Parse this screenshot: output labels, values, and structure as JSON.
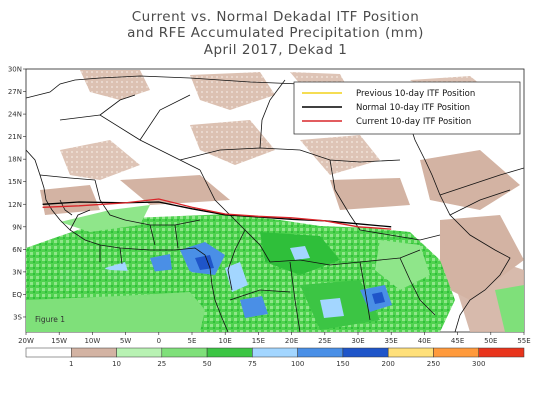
{
  "title": {
    "line1": "Current vs. Normal Dekadal ITF Position",
    "line2": "and RFE Accumulated Precipitation (mm)",
    "line3": "April 2017, Dekad 1"
  },
  "figure_label": "Figure 1",
  "axes": {
    "lat_ticks": [
      "30N",
      "27N",
      "24N",
      "21N",
      "18N",
      "15N",
      "12N",
      "9N",
      "6N",
      "3N",
      "EQ",
      "3S"
    ],
    "lon_ticks": [
      "20W",
      "15W",
      "10W",
      "5W",
      "0",
      "5E",
      "10E",
      "15E",
      "20E",
      "25E",
      "30E",
      "35E",
      "40E",
      "45E",
      "50E",
      "55E"
    ]
  },
  "legend": {
    "items": [
      {
        "label": "Previous 10-day ITF Position",
        "color": "#f2d21a"
      },
      {
        "label": "Normal 10-day ITF Position",
        "color": "#000000"
      },
      {
        "label": "Current 10-day ITF Position",
        "color": "#d9262a"
      }
    ]
  },
  "colorbar": {
    "ticks": [
      "1",
      "10",
      "25",
      "50",
      "75",
      "100",
      "150",
      "200",
      "250",
      "300"
    ],
    "colors": [
      "#ffffff",
      "#d3b3a3",
      "#b8f2b3",
      "#7fe07a",
      "#3cc544",
      "#a3d6ff",
      "#4a8fe6",
      "#1f55c9",
      "#ffe07a",
      "#ff9a3c",
      "#e8341c"
    ]
  },
  "itf_lines": {
    "normal": [
      [
        -17.5,
        12.0
      ],
      [
        -12,
        12.3
      ],
      [
        -5,
        12.2
      ],
      [
        0,
        12.3
      ],
      [
        5,
        11.4
      ],
      [
        10,
        10.6
      ],
      [
        15,
        10.3
      ],
      [
        20,
        10.0
      ],
      [
        25,
        9.8
      ],
      [
        30,
        9.4
      ],
      [
        35,
        9.0
      ]
    ],
    "current": [
      [
        -17.5,
        11.6
      ],
      [
        -12,
        11.8
      ],
      [
        -5,
        12.2
      ],
      [
        0,
        12.7
      ],
      [
        5,
        11.6
      ],
      [
        10,
        10.7
      ],
      [
        15,
        10.4
      ],
      [
        20,
        10.2
      ],
      [
        25,
        9.8
      ],
      [
        30,
        9.0
      ],
      [
        35,
        8.7
      ]
    ]
  }
}
